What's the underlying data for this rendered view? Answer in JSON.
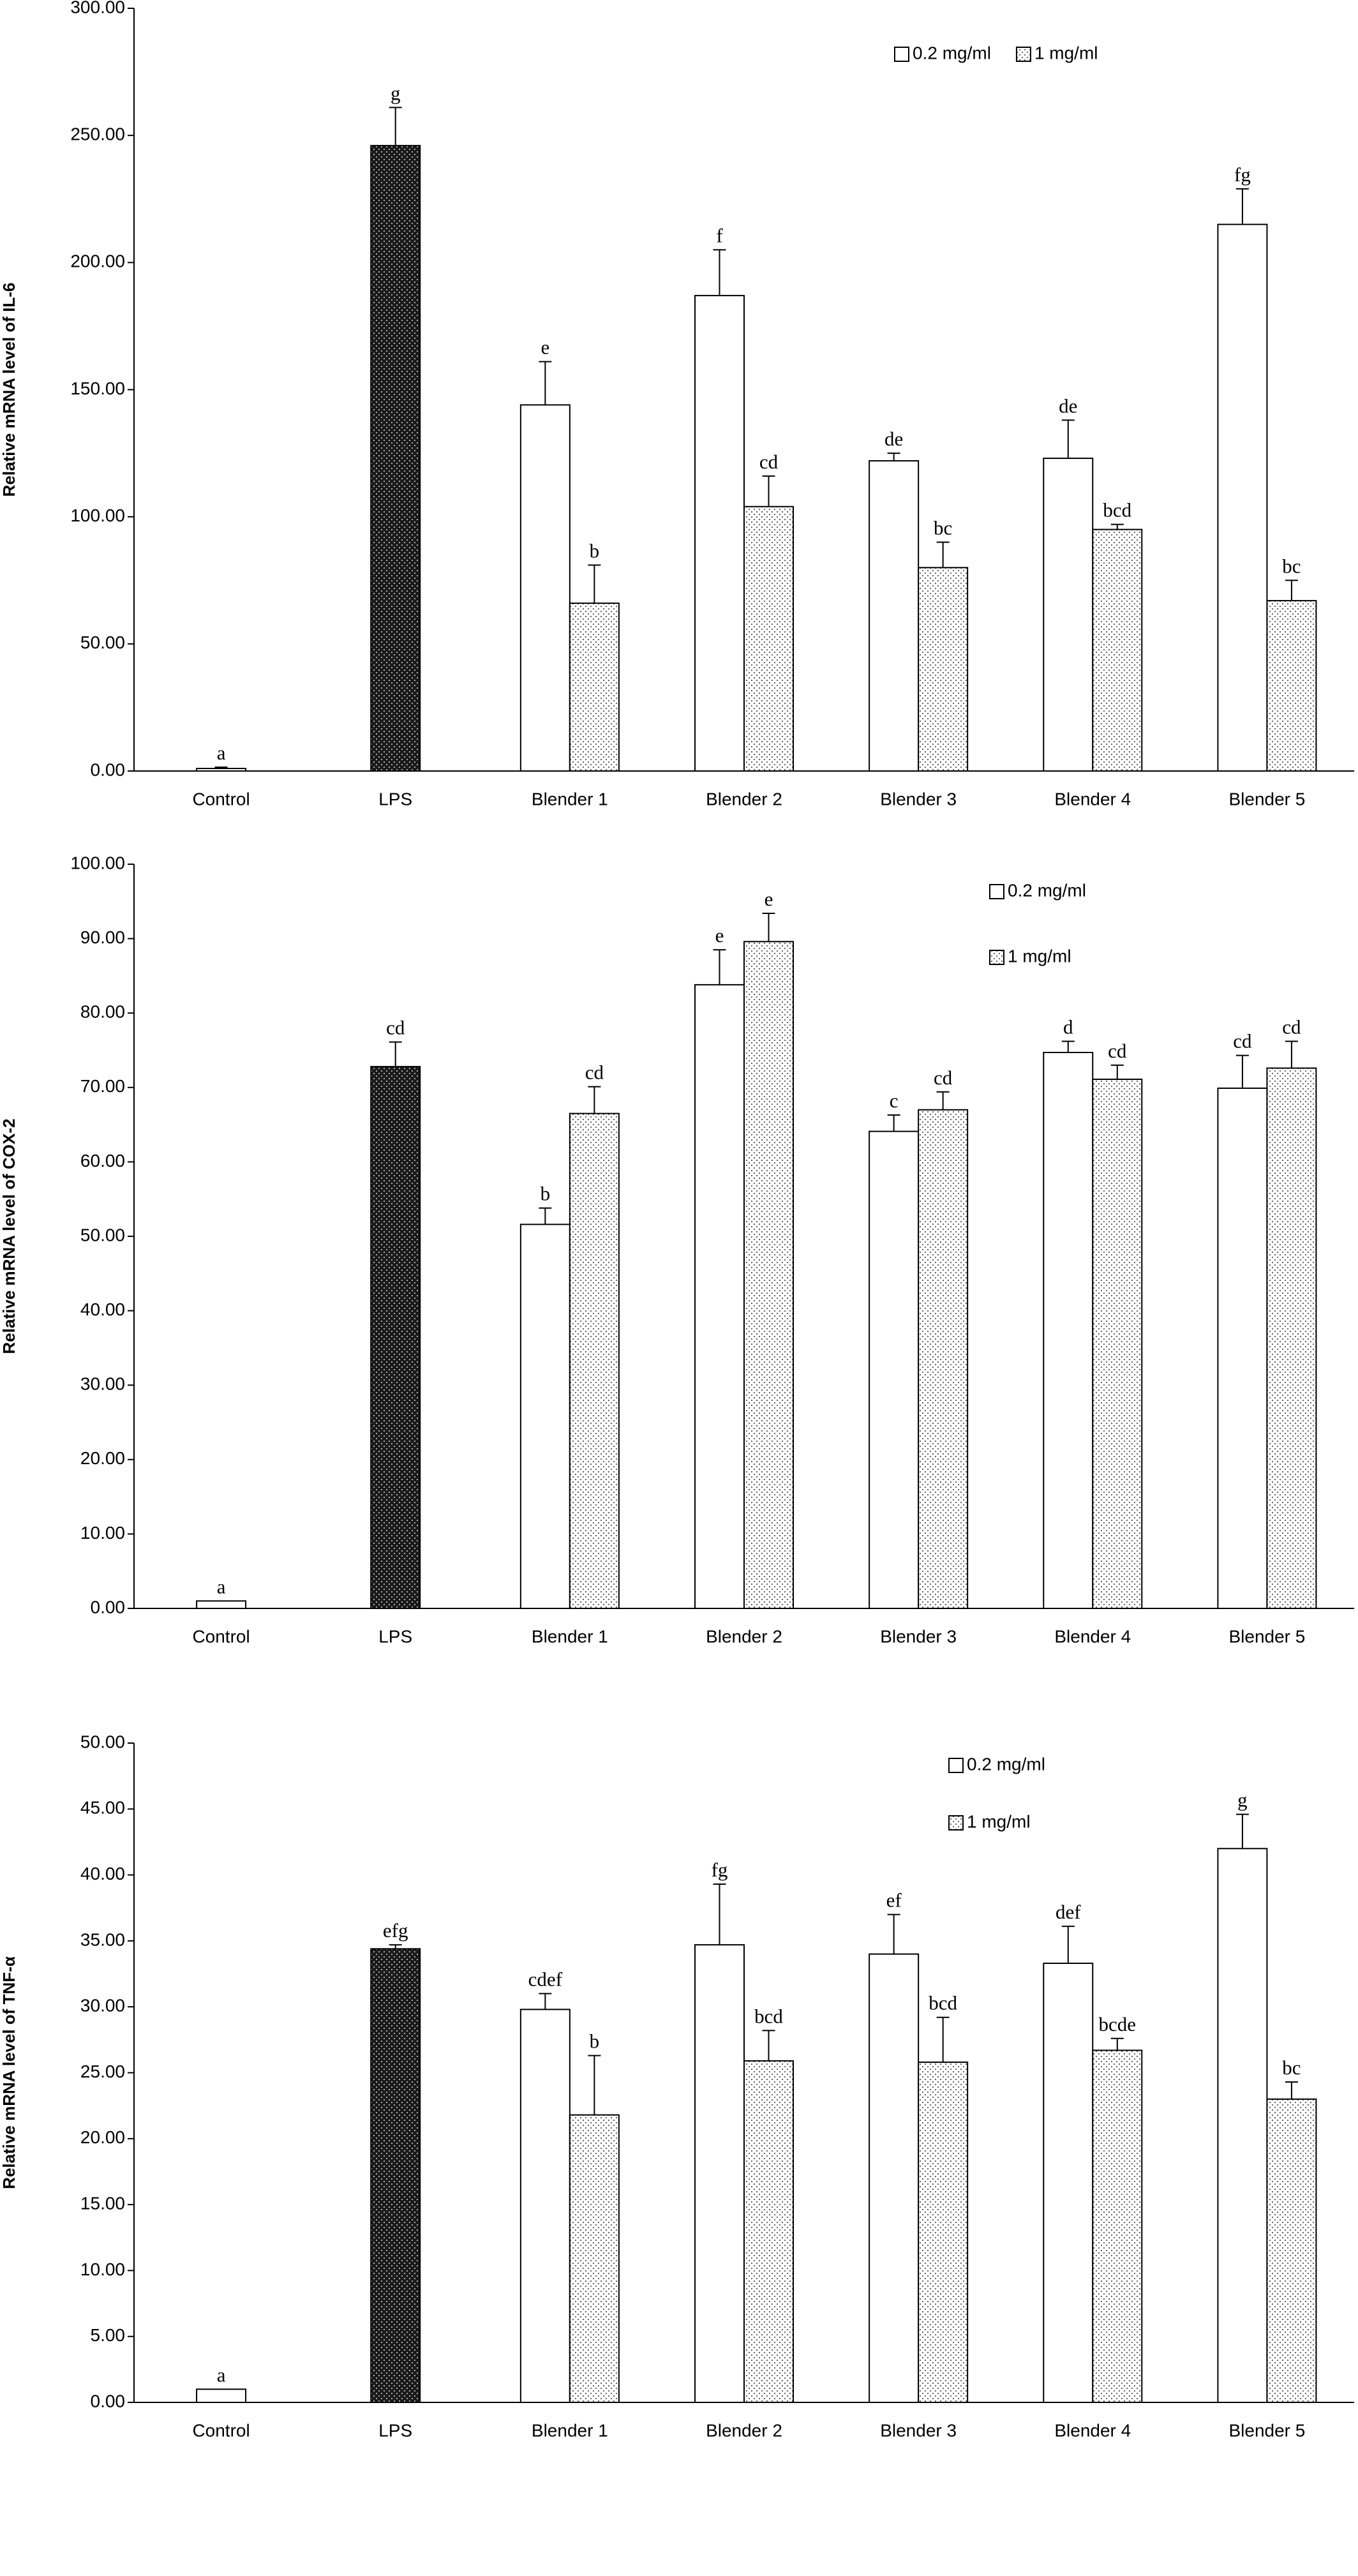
{
  "chart_data": [
    {
      "type": "bar",
      "ylabel": "Relative mRNA level of IL-6",
      "categories": [
        "Control",
        "LPS",
        "Blender 1",
        "Blender 2",
        "Blender 3",
        "Blender 4",
        "Blender 5"
      ],
      "ylim": [
        0,
        300
      ],
      "yticks": [
        {
          "value": 0,
          "label": "0.00"
        },
        {
          "value": 50,
          "label": "50.00"
        },
        {
          "value": 100,
          "label": "100.00"
        },
        {
          "value": 150,
          "label": "150.00"
        },
        {
          "value": 200,
          "label": "200.00"
        },
        {
          "value": 250,
          "label": "250.00"
        },
        {
          "value": 300,
          "label": "300.00"
        }
      ],
      "legend": "upper right",
      "legend_orientation": "horizontal",
      "series": [
        {
          "name": "0.2 mg/ml",
          "color": "#ffffff",
          "values": [
            1,
            null,
            144,
            187,
            122,
            123,
            215
          ],
          "errors": [
            0.5,
            null,
            17,
            18,
            3,
            15,
            14
          ],
          "letters": [
            "a",
            null,
            "e",
            "f",
            "de",
            "de",
            "fg"
          ]
        },
        {
          "color": "#1a1a1a",
          "pattern": "dots",
          "values": [
            null,
            246,
            null,
            null,
            null,
            null,
            null
          ],
          "errors": [
            null,
            15,
            null,
            null,
            null,
            null,
            null
          ],
          "letters": [
            null,
            "g",
            null,
            null,
            null,
            null,
            null
          ]
        },
        {
          "name": "1 mg/ml",
          "color": "#ffffff",
          "pattern": "dots",
          "values": [
            null,
            null,
            66,
            104,
            80,
            95,
            67
          ],
          "errors": [
            null,
            null,
            15,
            12,
            10,
            2,
            8
          ],
          "letters": [
            null,
            null,
            "b",
            "cd",
            "bc",
            "bcd",
            "bc"
          ]
        }
      ]
    },
    {
      "type": "bar",
      "ylabel": "Relative mRNA level of COX-2",
      "categories": [
        "Control",
        "LPS",
        "Blender 1",
        "Blender 2",
        "Blender 3",
        "Blender 4",
        "Blender 5"
      ],
      "ylim": [
        0,
        100
      ],
      "yticks": [
        {
          "value": 0,
          "label": "0.00"
        },
        {
          "value": 10,
          "label": "10.00"
        },
        {
          "value": 20,
          "label": "20.00"
        },
        {
          "value": 30,
          "label": "30.00"
        },
        {
          "value": 40,
          "label": "40.00"
        },
        {
          "value": 50,
          "label": "50.00"
        },
        {
          "value": 60,
          "label": "60.00"
        },
        {
          "value": 70,
          "label": "70.00"
        },
        {
          "value": 80,
          "label": "80.00"
        },
        {
          "value": 90,
          "label": "90.00"
        },
        {
          "value": 100,
          "label": "100.00"
        }
      ],
      "legend": "upper right",
      "legend_orientation": "vertical",
      "series": [
        {
          "name": "0.2 mg/ml",
          "color": "#ffffff",
          "values": [
            1,
            null,
            51.6,
            83.8,
            64.1,
            74.7,
            69.9
          ],
          "errors": [
            0,
            null,
            2.2,
            4.7,
            2.2,
            1.5,
            4.4
          ],
          "letters": [
            "a",
            null,
            "b",
            "e",
            "c",
            "d",
            "cd"
          ]
        },
        {
          "color": "#1a1a1a",
          "pattern": "dots",
          "values": [
            null,
            72.8,
            null,
            null,
            null,
            null,
            null
          ],
          "errors": [
            null,
            3.3,
            null,
            null,
            null,
            null,
            null
          ],
          "letters": [
            null,
            "cd",
            null,
            null,
            null,
            null,
            null
          ]
        },
        {
          "name": "1 mg/ml",
          "color": "#ffffff",
          "pattern": "dots",
          "values": [
            null,
            null,
            66.5,
            89.6,
            67.0,
            71.1,
            72.6
          ],
          "errors": [
            null,
            null,
            3.6,
            3.8,
            2.4,
            1.9,
            3.6
          ],
          "letters": [
            null,
            null,
            "cd",
            "e",
            "cd",
            "cd",
            "cd"
          ]
        }
      ]
    },
    {
      "type": "bar",
      "ylabel": "Relative mRNA level of TNF-α",
      "categories": [
        "Control",
        "LPS",
        "Blender 1",
        "Blender 2",
        "Blender 3",
        "Blender 4",
        "Blender 5"
      ],
      "ylim": [
        0,
        50
      ],
      "yticks": [
        {
          "value": 0,
          "label": "0.00"
        },
        {
          "value": 5,
          "label": "5.00"
        },
        {
          "value": 10,
          "label": "10.00"
        },
        {
          "value": 15,
          "label": "15.00"
        },
        {
          "value": 20,
          "label": "20.00"
        },
        {
          "value": 25,
          "label": "25.00"
        },
        {
          "value": 30,
          "label": "30.00"
        },
        {
          "value": 35,
          "label": "35.00"
        },
        {
          "value": 40,
          "label": "40.00"
        },
        {
          "value": 45,
          "label": "45.00"
        },
        {
          "value": 50,
          "label": "50.00"
        }
      ],
      "legend": "upper right",
      "legend_orientation": "vertical",
      "series": [
        {
          "name": "0.2 mg/ml",
          "color": "#ffffff",
          "values": [
            1,
            null,
            29.8,
            34.7,
            34.0,
            33.3,
            42.0
          ],
          "errors": [
            0,
            null,
            1.2,
            4.6,
            3.0,
            2.8,
            2.6
          ],
          "letters": [
            "a",
            null,
            "cdef",
            "fg",
            "ef",
            "def",
            "g"
          ]
        },
        {
          "color": "#1a1a1a",
          "pattern": "dots",
          "values": [
            null,
            34.4,
            null,
            null,
            null,
            null,
            null
          ],
          "errors": [
            null,
            0.3,
            null,
            null,
            null,
            null,
            null
          ],
          "letters": [
            null,
            "efg",
            null,
            null,
            null,
            null,
            null
          ]
        },
        {
          "name": "1 mg/ml",
          "color": "#ffffff",
          "pattern": "dots",
          "values": [
            null,
            null,
            21.8,
            25.9,
            25.8,
            26.7,
            23.0
          ],
          "errors": [
            null,
            null,
            4.5,
            2.3,
            3.4,
            0.9,
            1.3
          ],
          "letters": [
            null,
            null,
            "b",
            "bcd",
            "bcd",
            "bcde",
            "bc"
          ]
        }
      ]
    }
  ]
}
